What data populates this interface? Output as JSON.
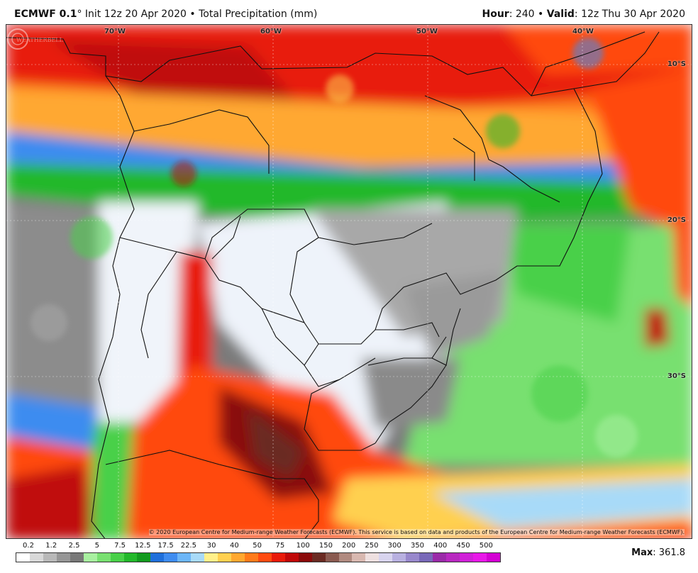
{
  "header": {
    "model": "ECMWF 0.1",
    "degree_sign": "°",
    "init": "Init 12z 20 Apr 2020",
    "separator": "•",
    "product": "Total Precipitation (mm)",
    "hour_label": "Hour",
    "hour_value": ": 240",
    "valid_label": "Valid",
    "valid_value": ": 12z Thu 30 Apr 2020"
  },
  "map": {
    "longitude_labels": [
      "70°W",
      "60°W",
      "50°W",
      "40°W"
    ],
    "latitude_labels": [
      "10°S",
      "20°S",
      "30°S"
    ],
    "copyright": "© 2020 European Centre for Medium-range Weather Forecasts (ECMWF). This service is based on data and products of the European Centre for Medium-range Weather Forecasts (ECMWF).",
    "watermark_text": "WEATHERBELL"
  },
  "legend": {
    "labels": [
      "0.2",
      "1.2",
      "2.5",
      "5",
      "7.5",
      "12.5",
      "17.5",
      "22.5",
      "30",
      "40",
      "50",
      "75",
      "100",
      "150",
      "200",
      "250",
      "300",
      "350",
      "400",
      "450",
      "500"
    ],
    "colors": [
      "#ffffff",
      "#d8d8d8",
      "#b8b8b8",
      "#969696",
      "#787878",
      "#a8f0a0",
      "#78e070",
      "#48d048",
      "#22b82a",
      "#129a1e",
      "#1f6fdb",
      "#3e8cf0",
      "#6cb6f8",
      "#a8daf8",
      "#fff08a",
      "#ffd050",
      "#ffa830",
      "#ff7a1a",
      "#ff4a10",
      "#e81a0a",
      "#c00808",
      "#8a0a0a",
      "#6a2a22",
      "#8a5a50",
      "#b08a80",
      "#d8b8b0",
      "#eee0e0",
      "#d8d4ee",
      "#b8b0e0",
      "#9888cc",
      "#7868b8",
      "#9a2aa8",
      "#b828c0",
      "#d020d8",
      "#e818e8",
      "#d400d4"
    ]
  },
  "max": {
    "label": "Max",
    "value": ": 361.8"
  }
}
